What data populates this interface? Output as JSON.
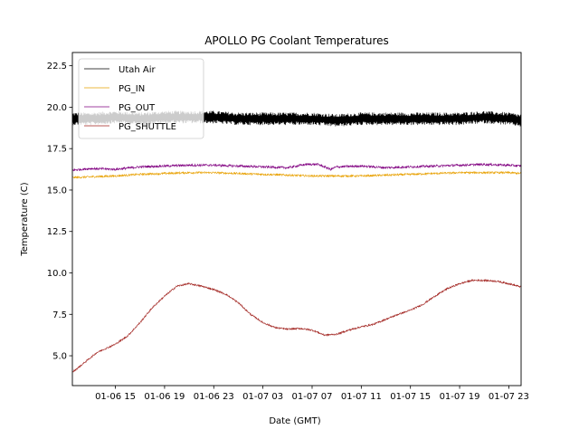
{
  "chart_data": {
    "type": "line",
    "title": "APOLLO PG Coolant Temperatures",
    "xlabel": "Date (GMT)",
    "ylabel": "Temperature (C)",
    "x_unit": "hours since 01-06 00:00 GMT",
    "xlim": [
      11.5,
      48.0
    ],
    "ylim": [
      3.2,
      23.3
    ],
    "grid": false,
    "legend_position": "upper-left",
    "x_ticks": [
      {
        "value": 15,
        "label": "01-06 15"
      },
      {
        "value": 19,
        "label": "01-06 19"
      },
      {
        "value": 23,
        "label": "01-06 23"
      },
      {
        "value": 27,
        "label": "01-07 03"
      },
      {
        "value": 31,
        "label": "01-07 07"
      },
      {
        "value": 35,
        "label": "01-07 11"
      },
      {
        "value": 39,
        "label": "01-07 15"
      },
      {
        "value": 43,
        "label": "01-07 19"
      },
      {
        "value": 47,
        "label": "01-07 23"
      }
    ],
    "y_ticks": [
      {
        "value": 5.0,
        "label": "5.0"
      },
      {
        "value": 7.5,
        "label": "7.5"
      },
      {
        "value": 10.0,
        "label": "10.0"
      },
      {
        "value": 12.5,
        "label": "12.5"
      },
      {
        "value": 15.0,
        "label": "15.0"
      },
      {
        "value": 17.5,
        "label": "17.5"
      },
      {
        "value": 20.0,
        "label": "20.0"
      },
      {
        "value": 22.5,
        "label": "22.5"
      }
    ],
    "series": [
      {
        "name": "Utah Air",
        "color": "#000000",
        "noise": 0.35,
        "x": [
          11.5,
          13,
          15,
          17,
          19,
          21,
          23,
          25,
          27,
          29,
          31,
          33,
          35,
          37,
          39,
          41,
          43,
          45,
          47,
          48
        ],
        "y": [
          19.3,
          19.3,
          19.4,
          19.3,
          19.4,
          19.4,
          19.4,
          19.3,
          19.3,
          19.3,
          19.3,
          19.2,
          19.3,
          19.3,
          19.3,
          19.3,
          19.3,
          19.4,
          19.3,
          19.2
        ]
      },
      {
        "name": "PG_IN",
        "color": "#e8a000",
        "noise": 0.06,
        "x": [
          11.5,
          13,
          15,
          17,
          19,
          21,
          23,
          25,
          27,
          29,
          31,
          33,
          35,
          37,
          39,
          41,
          43,
          45,
          47,
          48
        ],
        "y": [
          15.75,
          15.8,
          15.85,
          15.95,
          16.0,
          16.05,
          16.05,
          16.0,
          15.95,
          15.9,
          15.85,
          15.85,
          15.85,
          15.9,
          15.95,
          16.0,
          16.05,
          16.05,
          16.05,
          16.0
        ]
      },
      {
        "name": "PG_OUT",
        "color": "#800080",
        "noise": 0.07,
        "x": [
          11.5,
          13,
          15,
          17,
          19,
          21,
          23,
          25,
          27,
          29,
          30.5,
          31.5,
          32.5,
          33,
          35,
          37,
          39,
          41,
          43,
          45,
          47,
          48
        ],
        "y": [
          16.2,
          16.3,
          16.25,
          16.4,
          16.45,
          16.5,
          16.5,
          16.45,
          16.4,
          16.35,
          16.55,
          16.55,
          16.25,
          16.4,
          16.45,
          16.35,
          16.4,
          16.45,
          16.5,
          16.55,
          16.5,
          16.45
        ]
      },
      {
        "name": "PG_SHUTTLE",
        "color": "#a0201c",
        "noise": 0.05,
        "x": [
          11.5,
          12.5,
          13.5,
          15,
          16,
          17,
          18,
          19,
          20,
          21,
          22,
          23,
          24,
          25,
          26,
          27,
          28,
          29,
          30,
          31,
          32,
          33,
          34,
          35,
          36,
          37,
          38,
          39,
          40,
          41,
          42,
          43,
          44,
          45,
          46,
          47,
          48
        ],
        "y": [
          4.0,
          4.6,
          5.2,
          5.7,
          6.2,
          7.0,
          7.9,
          8.6,
          9.2,
          9.35,
          9.2,
          9.0,
          8.7,
          8.2,
          7.5,
          7.0,
          6.7,
          6.6,
          6.65,
          6.55,
          6.25,
          6.3,
          6.55,
          6.75,
          6.9,
          7.2,
          7.5,
          7.75,
          8.1,
          8.6,
          9.05,
          9.35,
          9.55,
          9.55,
          9.5,
          9.35,
          9.15
        ]
      }
    ]
  }
}
